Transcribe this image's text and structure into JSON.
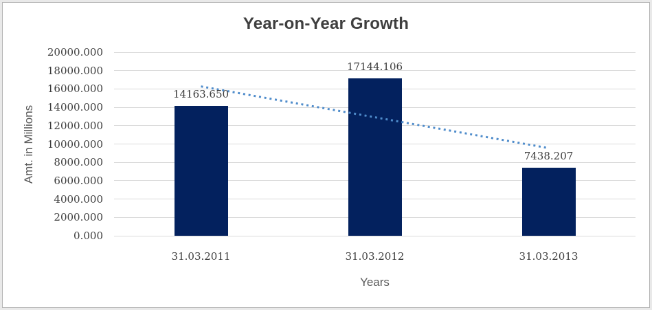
{
  "chart_data": {
    "type": "bar",
    "title": "Year-on-Year Growth",
    "xlabel": "Years",
    "ylabel": "Amt. in Millions",
    "categories": [
      "31.03.2011",
      "31.03.2012",
      "31.03.2013"
    ],
    "values": [
      14163.65,
      17144.106,
      7438.207
    ],
    "data_labels": [
      "14163.650",
      "17144.106",
      "7438.207"
    ],
    "ylim": [
      0,
      20000
    ],
    "ytick_step": 2000,
    "ytick_labels": [
      "0.000",
      "2000.000",
      "4000.000",
      "6000.000",
      "8000.000",
      "10000.000",
      "12000.000",
      "14000.000",
      "16000.000",
      "18000.000",
      "20000.000"
    ],
    "grid": true,
    "legend": "none",
    "trendline": {
      "type": "linear",
      "stroke_style": "dotted",
      "start_value": 16278,
      "end_value": 9553
    }
  },
  "colors": {
    "bar": "#03215E",
    "gridline": "#d9d9d9",
    "trendline": "#4f8ccb",
    "title_text": "#3f3f3f",
    "tick_text": "#3d3d3d",
    "axis_title_text": "#595959",
    "frame_border": "#b3b3b3",
    "outer_background": "#e9e9e9"
  }
}
